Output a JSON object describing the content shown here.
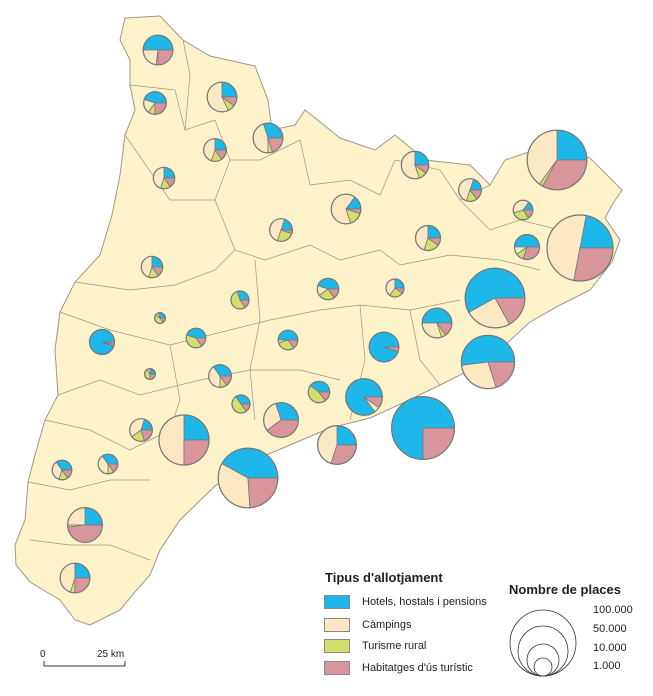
{
  "colors": {
    "land": "#fdf2c9",
    "border": "#9a9a8a",
    "hotels": "#1db8e9",
    "campings": "#fde8c4",
    "rural": "#d3de6c",
    "habitatges": "#d8969c",
    "pie_outline": "#777777"
  },
  "legend_types": {
    "title": "Tipus d'allotjament",
    "items": [
      {
        "key": "hotels",
        "label": "Hotels, hostals i pensions"
      },
      {
        "key": "campings",
        "label": "Càmpings"
      },
      {
        "key": "rural",
        "label": "Turisme rural"
      },
      {
        "key": "habitatges",
        "label": "Habitatges d'ús turístic"
      }
    ]
  },
  "legend_size": {
    "title": "Nombre de places",
    "values": [
      100000,
      50000,
      10000,
      1000
    ],
    "labels": [
      "100.000",
      "50.000",
      "10.000",
      "1.000"
    ]
  },
  "scale_bar": {
    "start_label": "0",
    "end_label": "25 km"
  },
  "chart_data": {
    "type": "pie-map",
    "slice_order": [
      "hotels",
      "campings",
      "rural",
      "habitatges"
    ],
    "pies": [
      {
        "places": 8500,
        "shares": [
          50,
          23,
          2,
          25
        ]
      },
      {
        "places": 4000,
        "shares": [
          45,
          20,
          10,
          25
        ]
      },
      {
        "places": 8500,
        "shares": [
          25,
          57,
          8,
          10
        ]
      },
      {
        "places": 4000,
        "shares": [
          25,
          45,
          15,
          15
        ]
      },
      {
        "places": 8500,
        "shares": [
          30,
          45,
          5,
          20
        ]
      },
      {
        "places": 3200,
        "shares": [
          25,
          45,
          15,
          15
        ]
      },
      {
        "places": 8500,
        "shares": [
          15,
          65,
          15,
          5
        ]
      },
      {
        "places": 4000,
        "shares": [
          20,
          50,
          25,
          5
        ]
      },
      {
        "places": 7000,
        "shares": [
          25,
          55,
          10,
          10
        ]
      },
      {
        "places": 4000,
        "shares": [
          20,
          50,
          15,
          15
        ]
      },
      {
        "places": 80000,
        "shares": [
          25,
          40,
          2,
          33
        ]
      },
      {
        "places": 2000,
        "shares": [
          15,
          40,
          30,
          15
        ]
      },
      {
        "places": 5500,
        "shares": [
          50,
          10,
          10,
          30
        ]
      },
      {
        "places": 100000,
        "shares": [
          22,
          50,
          0,
          28
        ]
      },
      {
        "places": 5500,
        "shares": [
          25,
          45,
          20,
          10
        ]
      },
      {
        "places": 3200,
        "shares": [
          25,
          45,
          15,
          15
        ]
      },
      {
        "places": 1000,
        "shares": [
          30,
          0,
          55,
          15
        ]
      },
      {
        "places": 3200,
        "shares": [
          45,
          15,
          25,
          15
        ]
      },
      {
        "places": 1000,
        "shares": [
          25,
          40,
          25,
          10
        ]
      },
      {
        "places": 80000,
        "shares": [
          58,
          25,
          0,
          17
        ]
      },
      {
        "places": 600,
        "shares": [
          30,
          10,
          45,
          15
        ]
      },
      {
        "places": 5500,
        "shares": [
          95,
          0,
          2,
          3
        ]
      },
      {
        "places": 2000,
        "shares": [
          45,
          0,
          40,
          15
        ]
      },
      {
        "places": 2000,
        "shares": [
          50,
          5,
          30,
          15
        ]
      },
      {
        "places": 8500,
        "shares": [
          50,
          30,
          5,
          15
        ]
      },
      {
        "places": 8500,
        "shares": [
          95,
          0,
          0,
          5
        ]
      },
      {
        "places": 60000,
        "shares": [
          52,
          28,
          0,
          20
        ]
      },
      {
        "places": 600,
        "shares": [
          25,
          10,
          40,
          25
        ]
      },
      {
        "places": 4000,
        "shares": [
          35,
          40,
          10,
          15
        ]
      },
      {
        "places": 3200,
        "shares": [
          40,
          0,
          45,
          15
        ]
      },
      {
        "places": 1000,
        "shares": [
          35,
          0,
          50,
          15
        ]
      },
      {
        "places": 20000,
        "shares": [
          85,
          5,
          0,
          10
        ]
      },
      {
        "places": 4000,
        "shares": [
          20,
          40,
          20,
          20
        ]
      },
      {
        "places": 50000,
        "shares": [
          25,
          50,
          0,
          25
        ]
      },
      {
        "places": 16000,
        "shares": [
          30,
          30,
          0,
          40
        ]
      },
      {
        "places": 25000,
        "shares": [
          25,
          45,
          0,
          30
        ]
      },
      {
        "places": 90000,
        "shares": [
          75,
          0,
          0,
          25
        ]
      },
      {
        "places": 80000,
        "shares": [
          42,
          34,
          0,
          24
        ]
      },
      {
        "places": 2000,
        "shares": [
          35,
          35,
          15,
          15
        ]
      },
      {
        "places": 2000,
        "shares": [
          35,
          40,
          10,
          15
        ]
      },
      {
        "places": 16000,
        "shares": [
          25,
          25,
          2,
          48
        ]
      },
      {
        "places": 8500,
        "shares": [
          25,
          45,
          5,
          25
        ]
      }
    ]
  }
}
